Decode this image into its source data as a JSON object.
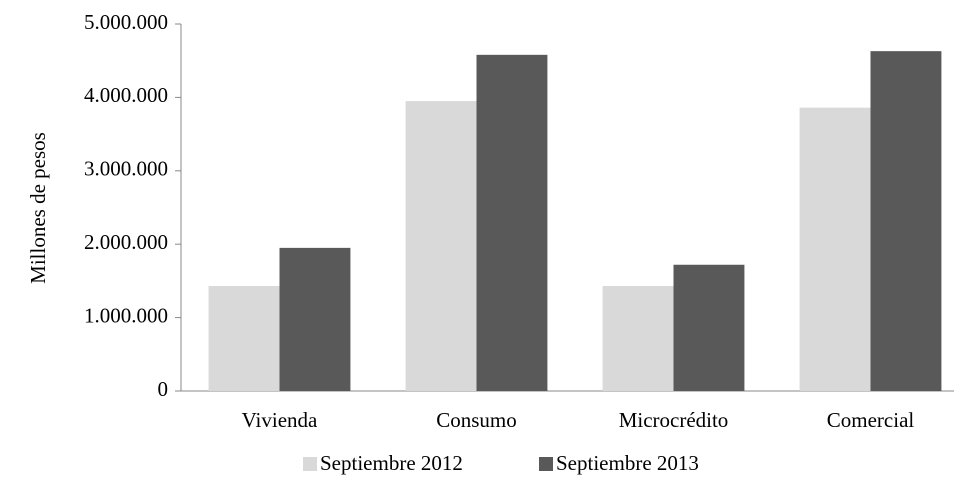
{
  "chart_data": {
    "type": "bar",
    "y_label": "Millones de pesos",
    "categories": [
      "Vivienda",
      "Consumo",
      "Microcrédito",
      "Comercial"
    ],
    "series": [
      {
        "name": "Septiembre 2012",
        "color": "#d9d9d9",
        "values": [
          1430000,
          3950000,
          1430000,
          3860000
        ]
      },
      {
        "name": "Septiembre 2013",
        "color": "#595959",
        "values": [
          1950000,
          4580000,
          1720000,
          4630000
        ]
      }
    ],
    "ylim": [
      0,
      5000000
    ],
    "yticks": [
      0,
      {
        "value": 1000000,
        "label": "1.000.000"
      },
      {
        "value": 2000000,
        "label": "2.000.000"
      },
      {
        "value": 3000000,
        "label": "3.000.000"
      },
      {
        "value": 4000000,
        "label": "4.000.000"
      },
      {
        "value": 5000000,
        "label": "5.000.000"
      }
    ],
    "grid": false,
    "legend": "bottom"
  }
}
